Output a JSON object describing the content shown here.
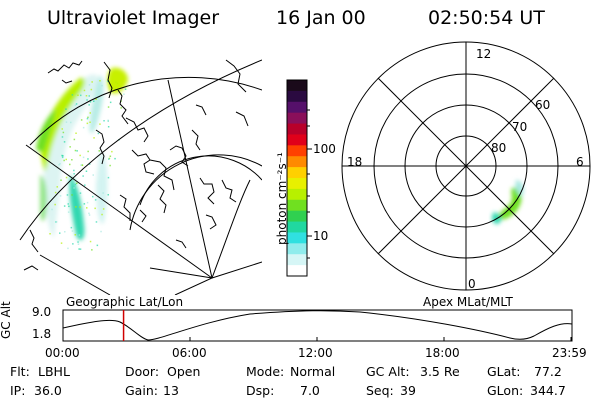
{
  "header": {
    "title": "Ultraviolet Imager",
    "date": "16 Jan 00",
    "time": "02:50:54 UT"
  },
  "colorbar": {
    "unit_label": "photon cm⁻²s⁻¹",
    "ticks": [
      "100",
      "10"
    ],
    "colors": [
      "#1a0a1a",
      "#2a0a40",
      "#55106a",
      "#8a0f5a",
      "#b8002a",
      "#e0001a",
      "#ff4000",
      "#ff8a00",
      "#ffd000",
      "#e8f000",
      "#b8f000",
      "#70e020",
      "#30d050",
      "#20d8a0",
      "#30e0e0",
      "#90ecec",
      "#d6f6f6",
      "#ffffff"
    ]
  },
  "panels": {
    "left_label": "Geographic Lat/Lon",
    "right_label": "Apex MLat/MLT"
  },
  "polar": {
    "mlt_labels": {
      "top": "12",
      "left": "18",
      "right": "6",
      "bottom": "0"
    },
    "lat_labels": [
      "60",
      "70",
      "80"
    ]
  },
  "altitude_plot": {
    "ylabel": "GC Alt",
    "ymax_label": "9.0",
    "ymin_label": "1.8",
    "x_ticks": [
      "00:00",
      "06:00",
      "12:00",
      "18:00",
      "23:59"
    ],
    "current_time_fraction": 0.119,
    "line_color": "#d00000"
  },
  "info": {
    "row1": [
      {
        "label": "Flt:",
        "value": "LBHL"
      },
      {
        "label": "Door:",
        "value": "Open"
      },
      {
        "label": "Mode:",
        "value": "Normal"
      },
      {
        "label": "GC Alt:",
        "value": "3.5 Re"
      },
      {
        "label": "GLat:",
        "value": "77.2"
      }
    ],
    "row2": [
      {
        "label": "IP:",
        "value": "36.0"
      },
      {
        "label": "Gain:",
        "value": "13"
      },
      {
        "label": "Dsp:",
        "value": "7.0"
      },
      {
        "label": "Seq:",
        "value": "39"
      },
      {
        "label": "GLon:",
        "value": "344.7"
      }
    ]
  }
}
